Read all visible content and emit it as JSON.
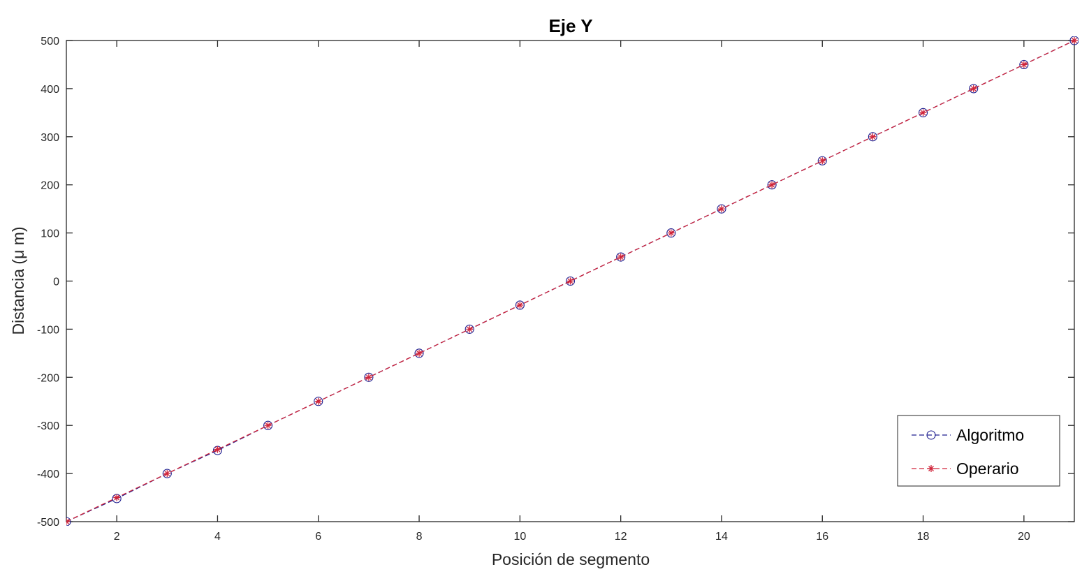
{
  "chart_data": {
    "type": "line",
    "title": "Eje Y",
    "xlabel": "Posición de segmento",
    "ylabel": "Distancia (μ m)",
    "xlim": [
      1,
      21
    ],
    "ylim": [
      -500,
      500
    ],
    "xticks": [
      2,
      4,
      6,
      8,
      10,
      12,
      14,
      16,
      18,
      20
    ],
    "yticks": [
      -500,
      -400,
      -300,
      -200,
      -100,
      0,
      100,
      200,
      300,
      400,
      500
    ],
    "grid": false,
    "legend_position": "bottom-right",
    "x": [
      1,
      2,
      3,
      4,
      5,
      6,
      7,
      8,
      9,
      10,
      11,
      12,
      13,
      14,
      15,
      16,
      17,
      18,
      19,
      20,
      21
    ],
    "series": [
      {
        "name": "Algoritmo",
        "color": "#1f1f8f",
        "line_style": "dashed",
        "marker": "circle",
        "values": [
          -500,
          -452,
          -400,
          -352,
          -300,
          -250,
          -200,
          -150,
          -100,
          -50,
          0,
          50,
          100,
          150,
          200,
          250,
          300,
          350,
          400,
          450,
          500
        ]
      },
      {
        "name": "Operario",
        "color": "#d0243a",
        "line_style": "dashed",
        "marker": "star",
        "values": [
          -500,
          -450,
          -400,
          -350,
          -300,
          -250,
          -200,
          -150,
          -100,
          -50,
          0,
          50,
          100,
          150,
          200,
          250,
          300,
          350,
          400,
          450,
          500
        ]
      }
    ]
  }
}
